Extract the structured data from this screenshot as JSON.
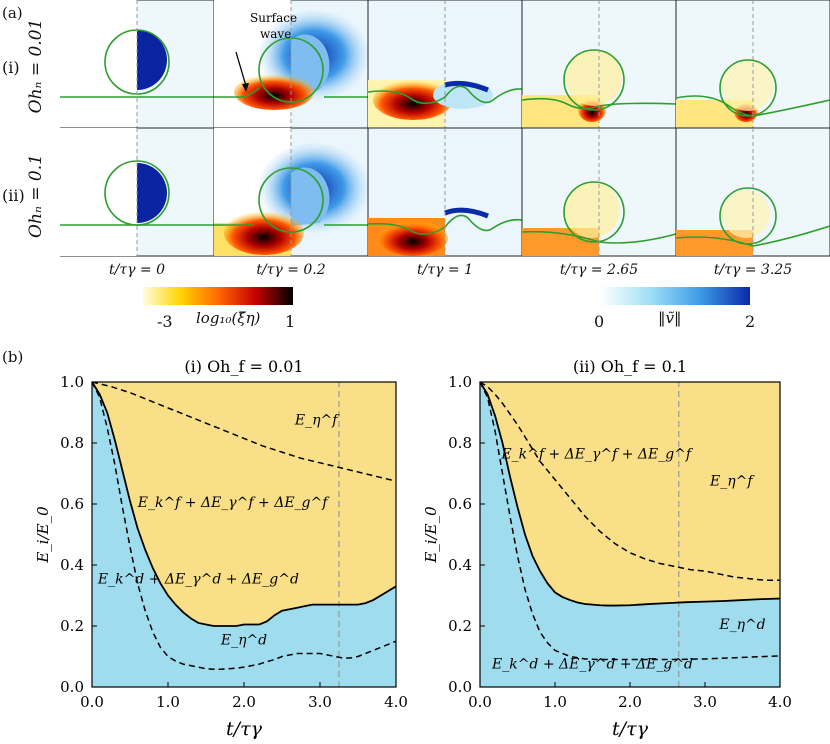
{
  "figure": {
    "panel_a": "(a)",
    "panel_b": "(b)",
    "rows": [
      {
        "roman": "(i)",
        "oh_label": "Ohₙ = 0.01"
      },
      {
        "roman": "(ii)",
        "oh_label": "Ohₙ = 0.1"
      }
    ],
    "snapshot_captions": [
      "t/τγ = 0",
      "t/τγ = 0.2",
      "t/τγ = 1",
      "t/τγ = 2.65",
      "t/τγ = 3.25"
    ],
    "surface_wave_label": [
      "Surface",
      "wave"
    ]
  },
  "colorbars": {
    "dissipation": {
      "min_label": "-3",
      "max_label": "1",
      "name": "log₁₀(ξ̃η)",
      "colors": [
        "#fffde0",
        "#ffd400",
        "#ff6a00",
        "#c80000",
        "#000000"
      ]
    },
    "velocity": {
      "min_label": "0",
      "max_label": "2",
      "name": "‖ṽ‖",
      "colors": [
        "#ffffff",
        "#9fe0f5",
        "#3f9be8",
        "#0a2aa8"
      ]
    }
  },
  "colors": {
    "drop_fluid": "#9fdcee",
    "film_fluid": "#f9df88",
    "interface": "#2e9e2e",
    "vline": "#999999"
  },
  "chart_data": [
    {
      "type": "area",
      "title": "(i) Oh_f = 0.01",
      "xlabel": "t/τγ",
      "ylabel": "E_i/E_0",
      "xlim": [
        0,
        4
      ],
      "ylim": [
        0,
        1
      ],
      "xticks": [
        "0.0",
        "1.0",
        "2.0",
        "3.0",
        "4.0"
      ],
      "yticks": [
        "0.0",
        "0.2",
        "0.4",
        "0.6",
        "0.8",
        "1.0"
      ],
      "marker_t": 3.25,
      "series": [
        {
          "role": "total drop energy",
          "style": "solid",
          "x": [
            0,
            0.1,
            0.2,
            0.3,
            0.4,
            0.5,
            0.6,
            0.7,
            0.8,
            0.9,
            1.0,
            1.1,
            1.2,
            1.3,
            1.4,
            1.5,
            1.6,
            1.7,
            1.8,
            1.9,
            2.0,
            2.1,
            2.2,
            2.3,
            2.4,
            2.5,
            2.6,
            2.7,
            2.8,
            2.9,
            3.0,
            3.1,
            3.2,
            3.3,
            3.4,
            3.5,
            3.6,
            3.7,
            3.8,
            3.9,
            4.0
          ],
          "y": [
            1.0,
            0.96,
            0.9,
            0.81,
            0.71,
            0.61,
            0.52,
            0.45,
            0.39,
            0.34,
            0.3,
            0.27,
            0.245,
            0.225,
            0.21,
            0.205,
            0.2,
            0.2,
            0.2,
            0.2,
            0.205,
            0.205,
            0.205,
            0.215,
            0.235,
            0.25,
            0.255,
            0.26,
            0.265,
            0.27,
            0.27,
            0.27,
            0.27,
            0.27,
            0.27,
            0.27,
            0.275,
            0.285,
            0.3,
            0.315,
            0.33
          ]
        },
        {
          "role": "drop kinetic + surface + gravity",
          "style": "dashed",
          "x": [
            0,
            0.1,
            0.2,
            0.3,
            0.4,
            0.5,
            0.6,
            0.7,
            0.8,
            0.9,
            1.0,
            1.1,
            1.2,
            1.3,
            1.4,
            1.5,
            1.6,
            1.7,
            1.8,
            1.9,
            2.0,
            2.1,
            2.2,
            2.3,
            2.4,
            2.5,
            2.6,
            2.7,
            2.8,
            2.9,
            3.0,
            3.1,
            3.2,
            3.3,
            3.4,
            3.5,
            3.6,
            3.7,
            3.8,
            3.9,
            4.0
          ],
          "y": [
            1.0,
            0.95,
            0.85,
            0.73,
            0.59,
            0.46,
            0.34,
            0.25,
            0.18,
            0.13,
            0.1,
            0.085,
            0.075,
            0.07,
            0.065,
            0.06,
            0.058,
            0.058,
            0.06,
            0.062,
            0.065,
            0.07,
            0.075,
            0.083,
            0.09,
            0.1,
            0.105,
            0.11,
            0.11,
            0.11,
            0.11,
            0.105,
            0.1,
            0.095,
            0.095,
            0.1,
            0.11,
            0.12,
            0.13,
            0.14,
            0.15
          ]
        },
        {
          "role": "film energy boundary",
          "style": "dashed",
          "x": [
            0,
            0.25,
            0.5,
            0.75,
            1.0,
            1.25,
            1.5,
            1.75,
            2.0,
            2.25,
            2.5,
            2.75,
            3.0,
            3.25,
            3.5,
            3.75,
            4.0
          ],
          "y": [
            1.0,
            0.985,
            0.965,
            0.94,
            0.915,
            0.89,
            0.865,
            0.84,
            0.815,
            0.79,
            0.77,
            0.75,
            0.735,
            0.72,
            0.705,
            0.69,
            0.675
          ]
        }
      ],
      "annotations": [
        {
          "text": "E_η^f",
          "x": 2.95,
          "y": 0.86
        },
        {
          "text": "E_k^f + ΔE_γ^f + ΔE_g^f",
          "x": 1.85,
          "y": 0.59
        },
        {
          "text": "E_k^d + ΔE_γ^d + ΔE_g^d",
          "x": 1.4,
          "y": 0.34
        },
        {
          "text": "E_η^d",
          "x": 2.0,
          "y": 0.14
        }
      ]
    },
    {
      "type": "area",
      "title": "(ii) Oh_f = 0.1",
      "xlabel": "t/τγ",
      "ylabel": "E_i/E_0",
      "xlim": [
        0,
        4
      ],
      "ylim": [
        0,
        1
      ],
      "xticks": [
        "0.0",
        "1.0",
        "2.0",
        "3.0",
        "4.0"
      ],
      "yticks": [
        "0.0",
        "0.2",
        "0.4",
        "0.6",
        "0.8",
        "1.0"
      ],
      "marker_t": 2.65,
      "series": [
        {
          "role": "total drop energy",
          "style": "solid",
          "x": [
            0,
            0.1,
            0.2,
            0.3,
            0.4,
            0.5,
            0.6,
            0.7,
            0.8,
            0.9,
            1.0,
            1.1,
            1.2,
            1.3,
            1.4,
            1.5,
            1.6,
            1.7,
            1.8,
            2.0,
            2.25,
            2.5,
            2.75,
            3.0,
            3.25,
            3.5,
            3.75,
            4.0
          ],
          "y": [
            1.0,
            0.96,
            0.89,
            0.8,
            0.69,
            0.59,
            0.5,
            0.43,
            0.38,
            0.34,
            0.31,
            0.295,
            0.285,
            0.277,
            0.272,
            0.27,
            0.268,
            0.267,
            0.267,
            0.268,
            0.272,
            0.275,
            0.278,
            0.28,
            0.282,
            0.285,
            0.288,
            0.29
          ]
        },
        {
          "role": "drop kinetic + surface + gravity",
          "style": "dashed",
          "x": [
            0,
            0.1,
            0.2,
            0.3,
            0.4,
            0.5,
            0.6,
            0.7,
            0.8,
            0.9,
            1.0,
            1.2,
            1.4,
            1.6,
            1.8,
            2.0,
            2.5,
            3.0,
            3.5,
            4.0
          ],
          "y": [
            1.0,
            0.95,
            0.84,
            0.7,
            0.56,
            0.43,
            0.32,
            0.24,
            0.18,
            0.145,
            0.12,
            0.1,
            0.092,
            0.09,
            0.09,
            0.09,
            0.09,
            0.092,
            0.097,
            0.102
          ]
        },
        {
          "role": "film energy boundary",
          "style": "dashed",
          "x": [
            0,
            0.1,
            0.2,
            0.3,
            0.4,
            0.5,
            0.6,
            0.7,
            0.8,
            0.9,
            1.0,
            1.2,
            1.4,
            1.6,
            1.8,
            2.0,
            2.2,
            2.4,
            2.6,
            2.8,
            3.0,
            3.2,
            3.4,
            3.6,
            3.8,
            4.0
          ],
          "y": [
            1.0,
            0.985,
            0.96,
            0.93,
            0.895,
            0.86,
            0.82,
            0.78,
            0.74,
            0.71,
            0.68,
            0.62,
            0.56,
            0.51,
            0.47,
            0.44,
            0.42,
            0.405,
            0.395,
            0.385,
            0.38,
            0.37,
            0.36,
            0.355,
            0.35,
            0.35
          ]
        }
      ],
      "annotations": [
        {
          "text": "E_η^f",
          "x": 3.35,
          "y": 0.66
        },
        {
          "text": "E_k^f + ΔE_γ^f + ΔE_g^f",
          "x": 1.55,
          "y": 0.75
        },
        {
          "text": "E_k^d + ΔE_γ^d + ΔE_g^d",
          "x": 1.5,
          "y": 0.06
        },
        {
          "text": "E_η^d",
          "x": 3.5,
          "y": 0.19
        }
      ]
    }
  ]
}
